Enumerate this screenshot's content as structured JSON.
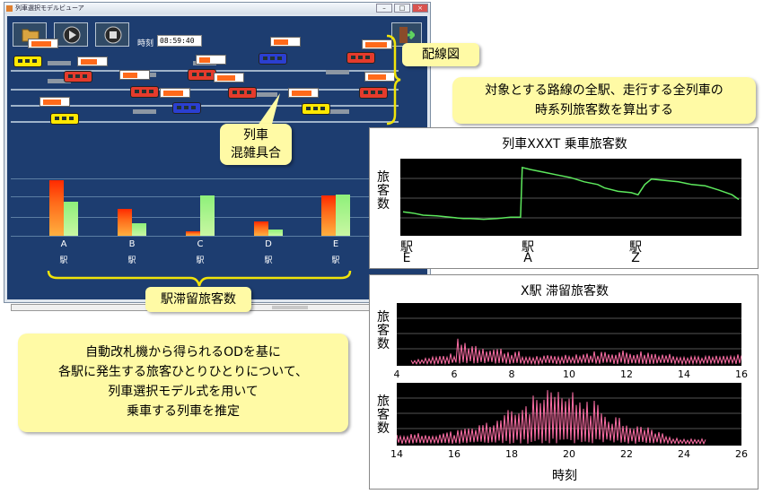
{
  "window": {
    "title": "列車選択モデルビューア",
    "time_label": "時刻",
    "time_value": "08:59:40"
  },
  "annotations": {
    "track_diagram": "配線図",
    "train_congestion": [
      "列車",
      "混雑具合"
    ],
    "station_waiting": "駅滞留旅客数",
    "top_right": [
      "対象とする路線の全駅、走行する全列車の",
      "時系列旅客数を算出する"
    ],
    "bottom_left": [
      "自動改札機から得られるODを基に",
      "各駅に発生する旅客ひとりひとりについて、",
      "列車選択モデル式を用いて",
      "乗車する列車を推定"
    ]
  },
  "stations": [
    {
      "letter": "A",
      "eki": "駅"
    },
    {
      "letter": "B",
      "eki": "駅"
    },
    {
      "letter": "C",
      "eki": "駅"
    },
    {
      "letter": "D",
      "eki": "駅"
    },
    {
      "letter": "E",
      "eki": "駅"
    }
  ],
  "colors": {
    "orange": "#ff6a1a",
    "green": "#8ef07a",
    "pink": "#ff6fa6",
    "line_green": "#5de85d",
    "callout": "#fffaa5"
  },
  "chart_data": [
    {
      "type": "bar",
      "title": "",
      "categories": [
        "A",
        "B",
        "C",
        "D",
        "E"
      ],
      "series": [
        {
          "values": [
            100,
            48,
            8,
            26,
            72
          ]
        },
        {
          "values": [
            62,
            22,
            72,
            12,
            75
          ]
        }
      ],
      "ylim": [
        0,
        100
      ]
    },
    {
      "type": "line",
      "title": "列車XXXT 乗車旅客数",
      "ylabel": "旅客数",
      "x_tick_labels": [
        [
          "駅",
          "E"
        ],
        [
          "駅",
          "A"
        ],
        [
          "駅",
          "Z"
        ]
      ],
      "series": [
        {
          "x": [
            0,
            3,
            6,
            10,
            14,
            18,
            20,
            24,
            28,
            32,
            35,
            35.5,
            38,
            42,
            46,
            50,
            54,
            58,
            60,
            64,
            68,
            70,
            72,
            74,
            78,
            82,
            86,
            90,
            94,
            98,
            100
          ],
          "y": [
            30,
            28,
            25,
            24,
            22,
            20,
            20,
            19,
            20,
            22,
            22,
            95,
            92,
            88,
            84,
            80,
            74,
            70,
            65,
            60,
            58,
            55,
            70,
            78,
            76,
            74,
            70,
            68,
            62,
            55,
            48
          ]
        }
      ]
    },
    {
      "type": "line",
      "title": "X駅 滞留旅客数",
      "ylabel": "旅客数",
      "xticks": [
        4,
        6,
        8,
        10,
        12,
        14,
        16
      ],
      "xlim": [
        4,
        16
      ]
    },
    {
      "type": "line",
      "title": "",
      "ylabel": "旅客数",
      "xlabel": "時刻",
      "xticks": [
        14,
        16,
        18,
        20,
        22,
        24,
        26
      ],
      "xlim": [
        14,
        26
      ]
    }
  ]
}
